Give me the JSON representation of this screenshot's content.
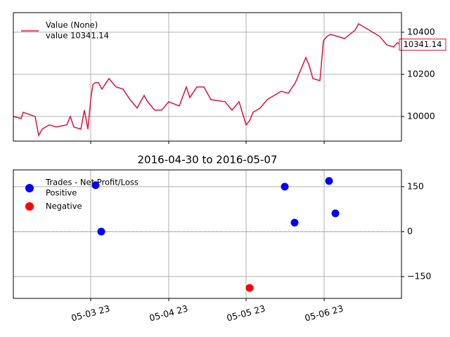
{
  "chart_data": [
    {
      "type": "line",
      "series": [
        {
          "name": "Value (None)",
          "color": "#dc143c",
          "x": [
            0,
            11,
            14,
            31,
            36,
            41,
            51,
            61,
            76,
            81,
            86,
            96,
            101,
            106,
            110,
            113,
            116,
            121,
            126,
            136,
            146,
            156,
            166,
            176,
            181,
            186,
            191,
            201,
            211,
            221,
            236,
            246,
            251,
            261,
            271,
            281,
            301,
            311,
            321,
            331,
            336,
            341,
            351,
            361,
            376,
            381,
            391,
            401,
            406,
            416,
            421,
            426,
            436,
            441,
            446,
            451,
            461,
            471,
            486,
            491,
            501,
            511,
            521,
            531,
            541,
            546,
            552
          ],
          "values": [
            10000,
            9990,
            10020,
            10000,
            9910,
            9940,
            9960,
            9950,
            9960,
            10000,
            9950,
            9940,
            10030,
            9940,
            10080,
            10150,
            10160,
            10160,
            10130,
            10180,
            10140,
            10130,
            10080,
            10040,
            10070,
            10100,
            10070,
            10030,
            10030,
            10070,
            10050,
            10140,
            10090,
            10140,
            10140,
            10080,
            10070,
            10030,
            10070,
            9960,
            9980,
            10020,
            10040,
            10080,
            10110,
            10120,
            10110,
            10160,
            10200,
            10280,
            10240,
            10180,
            10170,
            10360,
            10380,
            10390,
            10380,
            10370,
            10410,
            10440,
            10420,
            10400,
            10380,
            10340,
            10330,
            10350,
            10341.14
          ]
        }
      ],
      "legend_note": "value 10341.14",
      "last_value_label": "10341.14",
      "xlim": [
        0,
        552
      ],
      "xticks": [
        110,
        221,
        331,
        442
      ],
      "ylim": [
        9883,
        10493
      ],
      "yticks": [
        10000,
        10200,
        10400
      ],
      "grid": true
    },
    {
      "type": "scatter",
      "title": "2016-04-30 to 2016-05-07",
      "legend_title": "Trades - Net Profit/Loss",
      "series": [
        {
          "name": "Positive",
          "color": "#0000ff",
          "x": [
            117,
            125,
            386,
            400,
            449,
            458
          ],
          "values": [
            155,
            0,
            150,
            30,
            169,
            61
          ]
        },
        {
          "name": "Negative",
          "color": "#ff0000",
          "x": [
            336
          ],
          "values": [
            -188
          ]
        }
      ],
      "xlim": [
        0,
        552
      ],
      "xticks": [
        {
          "value": 110,
          "label": "05-03 23"
        },
        {
          "value": 221,
          "label": "05-04 23"
        },
        {
          "value": 331,
          "label": "05-05 23"
        },
        {
          "value": 442,
          "label": "05-06 23"
        }
      ],
      "ylim": [
        -223,
        206
      ],
      "yticks": [
        150,
        0,
        {
          "value": -150,
          "label": "−150"
        }
      ],
      "hline": 0,
      "grid": true
    }
  ]
}
